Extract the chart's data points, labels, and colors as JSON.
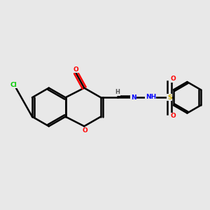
{
  "bg_color": "#e8e8e8",
  "bond_color": "#000000",
  "atom_colors": {
    "O": "#ff0000",
    "N": "#0000ff",
    "Cl": "#00cc00",
    "S": "#ccaa00",
    "H": "#555555",
    "C": "#000000"
  },
  "figsize": [
    3.0,
    3.0
  ],
  "dpi": 100
}
